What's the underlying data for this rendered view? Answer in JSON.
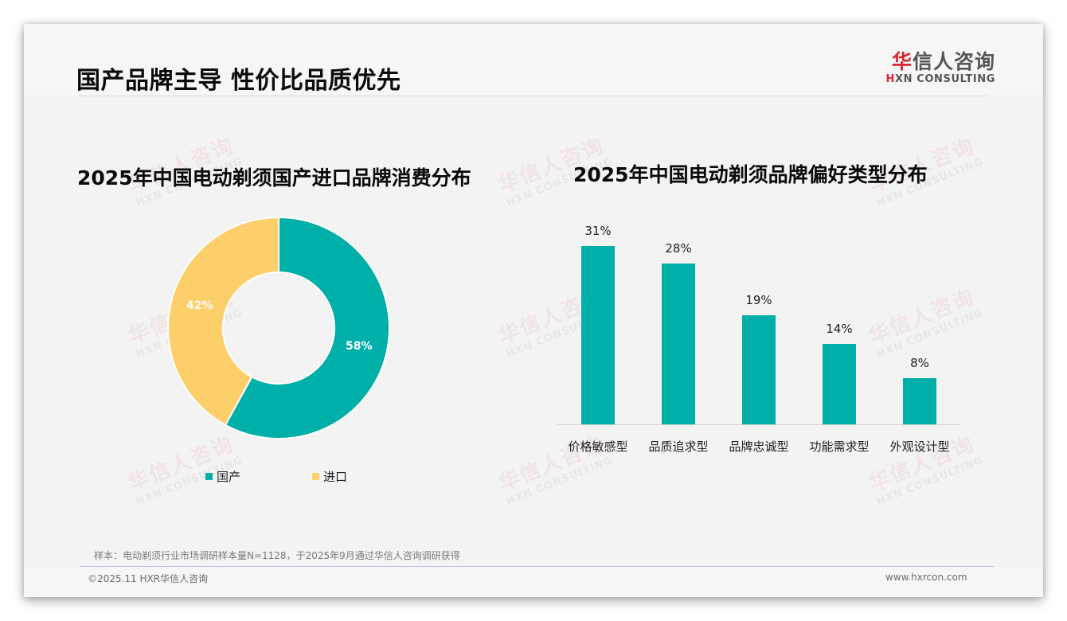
{
  "header": {
    "title": "国产品牌主导 性价比品质优先",
    "logo": {
      "cn_red": "华",
      "cn_rest": "信人咨询",
      "en_red": "H",
      "en_rest": "XN CONSULTING"
    }
  },
  "left_chart": {
    "title": "2025年中国电动剃须国产进口品牌消费分布",
    "legend": [
      {
        "label": "国产",
        "color": "#00afa8"
      },
      {
        "label": "进口",
        "color": "#fdcf6a"
      }
    ],
    "labels": {
      "domestic": "58%",
      "imported": "42%"
    }
  },
  "right_chart": {
    "title": "2025年中国电动剃须品牌偏好类型分布",
    "bars": [
      {
        "category": "价格敏感型",
        "value_label": "31%"
      },
      {
        "category": "品质追求型",
        "value_label": "28%"
      },
      {
        "category": "品牌忠诚型",
        "value_label": "19%"
      },
      {
        "category": "功能需求型",
        "value_label": "14%"
      },
      {
        "category": "外观设计型",
        "value_label": "8%"
      }
    ]
  },
  "watermark": {
    "cn": "华信人咨询",
    "en": "HXN CONSULTING"
  },
  "footer": {
    "source": "样本：电动剃须行业市场调研样本量N=1128，于2025年9月通过华信人咨询调研获得",
    "copyright": "©2025.11 HXR华信人咨询",
    "website": "www.hxrcon.com"
  },
  "colors": {
    "teal": "#00afa8",
    "yellow": "#fdcf6a",
    "background": "#f3f3f3"
  },
  "chart_data": [
    {
      "type": "pie",
      "title": "2025年中国电动剃须国产进口品牌消费分布",
      "donut": true,
      "categories": [
        "国产",
        "进口"
      ],
      "values": [
        58,
        42
      ],
      "unit": "%",
      "colors": [
        "#00afa8",
        "#fdcf6a"
      ],
      "legend_position": "bottom"
    },
    {
      "type": "bar",
      "title": "2025年中国电动剃须品牌偏好类型分布",
      "categories": [
        "价格敏感型",
        "品质追求型",
        "品牌忠诚型",
        "功能需求型",
        "外观设计型"
      ],
      "values": [
        31,
        28,
        19,
        14,
        8
      ],
      "unit": "%",
      "xlabel": "",
      "ylabel": "",
      "ylim": [
        0,
        35
      ],
      "grid": false,
      "color": "#00afa8",
      "data_labels": true
    }
  ]
}
